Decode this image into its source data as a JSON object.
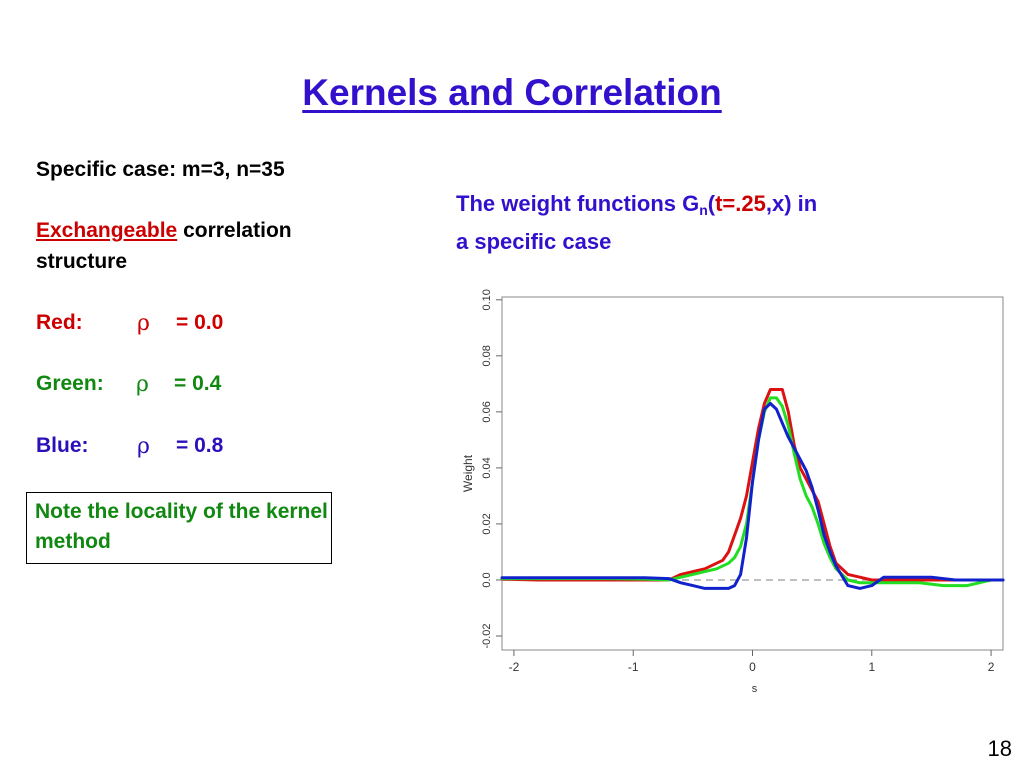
{
  "slide": {
    "title": "Kernels and Correlation",
    "page_number": "18"
  },
  "left_panel": {
    "specific_case": "Specific case: m=3, n=35",
    "exchangeable": "Exchangeable",
    "correlation_rest": " correlation",
    "structure": "structure",
    "red_label": "Red:",
    "green_label": "Green:",
    "blue_label": "Blue:",
    "rho_symbol": "ρ",
    "red_value": "= 0.0",
    "green_value": "= 0.4",
    "blue_value": "= 0.8",
    "note": "Note the locality of the kernel method"
  },
  "right_panel": {
    "caption_prefix": "The weight functions G",
    "caption_sub": "n",
    "caption_open": "(",
    "caption_t": "t=.25",
    "caption_rest": ",x) in",
    "caption_line2": "a specific case"
  },
  "colors": {
    "title": "#3311cc",
    "red": "#dd1111",
    "green": "#22dd22",
    "blue": "#1122cc",
    "reference_line": "#aaaaaa"
  },
  "chart_data": {
    "type": "line",
    "xlabel": "s",
    "ylabel": "Weight",
    "xlim": [
      -2.1,
      2.1
    ],
    "ylim": [
      -0.025,
      0.101
    ],
    "xticks": [
      -2,
      -1,
      0,
      1,
      2
    ],
    "yticks": [
      -0.02,
      0.0,
      0.02,
      0.04,
      0.06,
      0.08,
      0.1
    ],
    "ytick_labels": [
      "-0.02",
      "0.0",
      "0.02",
      "0.04",
      "0.06",
      "0.08",
      "0.10"
    ],
    "xtick_labels": [
      "-2",
      "-1",
      "0",
      "1",
      "2"
    ],
    "y_tick_rotated": true,
    "reference_line_y": 0.0,
    "series": [
      {
        "key": "red",
        "x": [
          -2.1,
          -1.8,
          -1.5,
          -1.2,
          -0.9,
          -0.7,
          -0.6,
          -0.5,
          -0.4,
          -0.3,
          -0.25,
          -0.2,
          -0.15,
          -0.1,
          -0.05,
          0.0,
          0.05,
          0.1,
          0.15,
          0.2,
          0.25,
          0.3,
          0.35,
          0.4,
          0.45,
          0.5,
          0.55,
          0.6,
          0.65,
          0.7,
          0.8,
          0.9,
          1.0,
          1.2,
          1.4,
          1.6,
          1.8,
          2.0,
          2.1
        ],
        "y": [
          0.0003,
          0.0,
          0.0,
          0.0,
          0.0,
          0.0,
          0.002,
          0.003,
          0.004,
          0.006,
          0.007,
          0.01,
          0.016,
          0.022,
          0.03,
          0.042,
          0.054,
          0.063,
          0.068,
          0.068,
          0.068,
          0.06,
          0.048,
          0.04,
          0.036,
          0.032,
          0.028,
          0.02,
          0.012,
          0.006,
          0.002,
          0.001,
          0.0,
          0.0,
          0.0,
          0.0,
          0.0,
          0.0,
          0.0
        ]
      },
      {
        "key": "green",
        "x": [
          -2.1,
          -1.8,
          -1.5,
          -1.2,
          -0.9,
          -0.7,
          -0.6,
          -0.5,
          -0.4,
          -0.3,
          -0.2,
          -0.15,
          -0.1,
          -0.05,
          0.0,
          0.05,
          0.1,
          0.15,
          0.2,
          0.25,
          0.3,
          0.35,
          0.4,
          0.45,
          0.5,
          0.55,
          0.6,
          0.65,
          0.7,
          0.8,
          0.9,
          1.0,
          1.2,
          1.4,
          1.6,
          1.8,
          2.0,
          2.1
        ],
        "y": [
          0.0005,
          0.0005,
          0.0005,
          0.0005,
          0.0003,
          0.0,
          0.001,
          0.002,
          0.003,
          0.004,
          0.006,
          0.008,
          0.012,
          0.02,
          0.035,
          0.05,
          0.06,
          0.065,
          0.065,
          0.062,
          0.055,
          0.045,
          0.036,
          0.03,
          0.026,
          0.02,
          0.013,
          0.008,
          0.004,
          0.0,
          -0.001,
          -0.001,
          -0.001,
          -0.001,
          -0.002,
          -0.002,
          0.0,
          0.0
        ]
      },
      {
        "key": "blue",
        "x": [
          -2.1,
          -1.8,
          -1.5,
          -1.2,
          -0.9,
          -0.7,
          -0.6,
          -0.5,
          -0.4,
          -0.3,
          -0.2,
          -0.15,
          -0.1,
          -0.05,
          0.0,
          0.05,
          0.1,
          0.15,
          0.2,
          0.25,
          0.3,
          0.35,
          0.4,
          0.45,
          0.5,
          0.55,
          0.6,
          0.65,
          0.7,
          0.8,
          0.9,
          1.0,
          1.1,
          1.3,
          1.5,
          1.7,
          1.9,
          2.1
        ],
        "y": [
          0.0008,
          0.0008,
          0.0008,
          0.0008,
          0.0008,
          0.0005,
          -0.001,
          -0.002,
          -0.003,
          -0.003,
          -0.003,
          -0.002,
          0.002,
          0.015,
          0.035,
          0.05,
          0.061,
          0.063,
          0.061,
          0.056,
          0.051,
          0.047,
          0.043,
          0.039,
          0.033,
          0.025,
          0.016,
          0.01,
          0.005,
          -0.002,
          -0.003,
          -0.002,
          0.001,
          0.001,
          0.001,
          0.0,
          0.0,
          0.0
        ]
      }
    ]
  }
}
